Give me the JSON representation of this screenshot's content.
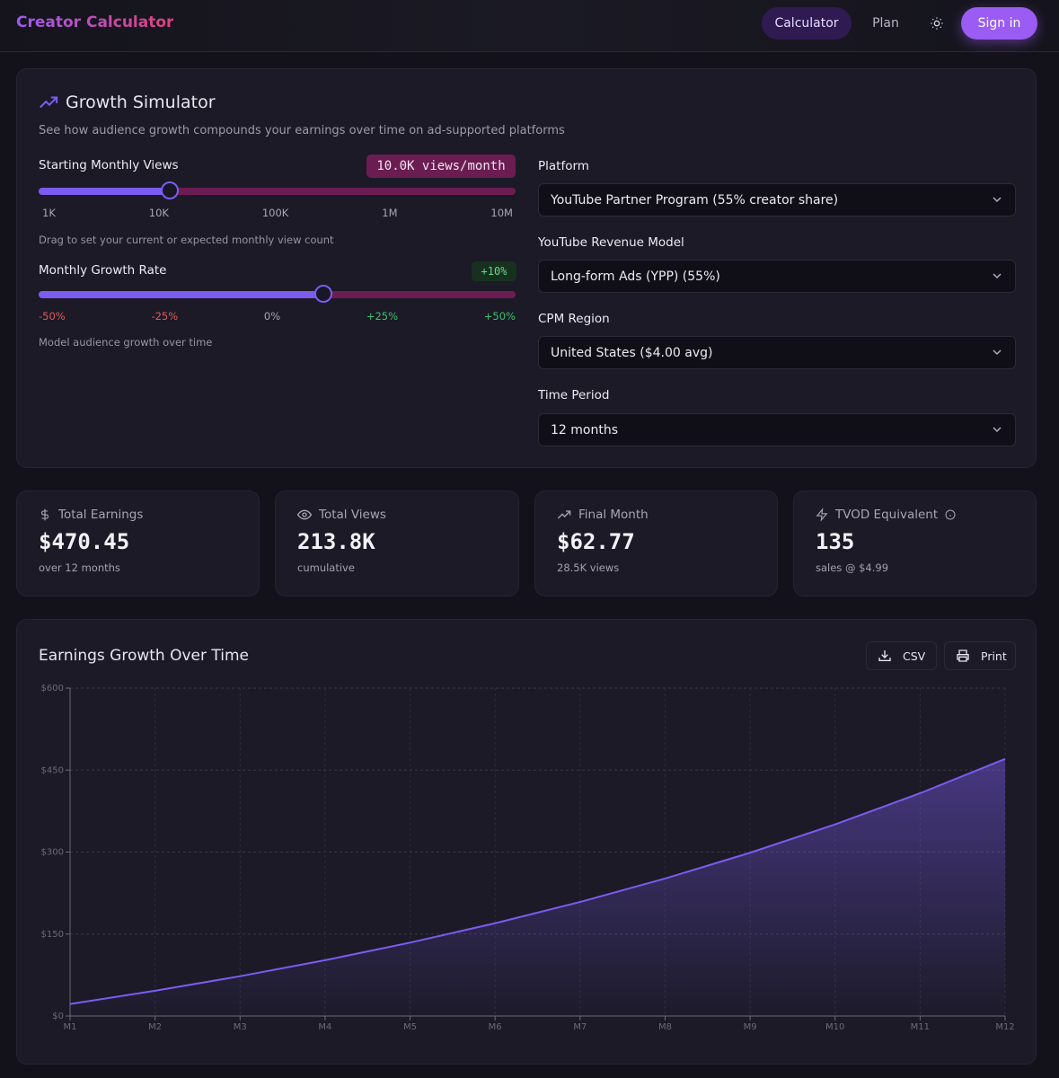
{
  "header": {
    "logo": "Creator Calculator",
    "nav": [
      {
        "label": "Calculator",
        "active": true
      },
      {
        "label": "Plan"
      }
    ],
    "theme_icon": "sun-icon",
    "sign_in": "Sign in"
  },
  "simulator": {
    "title": "Growth Simulator",
    "title_icon": "trending-up-icon",
    "subtitle": "See how audience growth compounds your earnings over time on ad-supported platforms",
    "views": {
      "label": "Starting Monthly Views",
      "value_badge": "10.0K views/month",
      "value": 10000,
      "position": 0.25,
      "ticks": [
        "1K",
        "10K",
        "100K",
        "1M",
        "10M"
      ],
      "hint": "Drag to set your current or expected monthly view count"
    },
    "growth": {
      "label": "Monthly Growth Rate",
      "value_badge": "+10%",
      "value": 10,
      "min": -50,
      "max": 50,
      "ticks": [
        "-50%",
        "-25%",
        "0%",
        "+25%",
        "+50%"
      ],
      "hint": "Model audience growth over time"
    },
    "selects": [
      {
        "label": "Platform",
        "value": "YouTube Partner Program (55% creator share)"
      },
      {
        "label": "YouTube Revenue Model",
        "value": "Long-form Ads (YPP) (55%)"
      },
      {
        "label": "CPM Region",
        "value": "United States ($4.00 avg)"
      },
      {
        "label": "Time Period",
        "value": "12 months"
      }
    ]
  },
  "stats": [
    {
      "icon": "dollar-icon",
      "label": "Total Earnings",
      "value": "$470.45",
      "sub": "over 12 months"
    },
    {
      "icon": "eye-icon",
      "label": "Total Views",
      "value": "213.8K",
      "sub": "cumulative"
    },
    {
      "icon": "trending-up-icon",
      "label": "Final Month",
      "value": "$62.77",
      "sub": "28.5K views"
    },
    {
      "icon": "zap-icon",
      "label": "TVOD Equivalent",
      "value": "135",
      "sub": "sales @ $4.99",
      "info_icon": "info-icon"
    }
  ],
  "chart_panel": {
    "title": "Earnings Growth Over Time",
    "csv": "CSV",
    "print": "Print"
  },
  "colors": {
    "accent": "#7c5cf0",
    "track": "#6b1d52",
    "negative": "#e05a5a",
    "positive": "#3fbf6a"
  },
  "chart_data": {
    "type": "area",
    "title": "Earnings Growth Over Time",
    "xlabel": "",
    "ylabel": "",
    "categories": [
      "M1",
      "M2",
      "M3",
      "M4",
      "M5",
      "M6",
      "M7",
      "M8",
      "M9",
      "M10",
      "M11",
      "M12"
    ],
    "values": [
      22.0,
      46.2,
      72.82,
      102.1,
      134.31,
      169.74,
      208.72,
      251.59,
      298.75,
      350.62,
      407.68,
      470.45
    ],
    "ylim": [
      0,
      600
    ],
    "yticks": [
      "$0",
      "$150",
      "$300",
      "$450",
      "$600"
    ],
    "ytick_values": [
      0,
      150,
      300,
      450,
      600
    ],
    "grid": true,
    "legend": "none"
  }
}
